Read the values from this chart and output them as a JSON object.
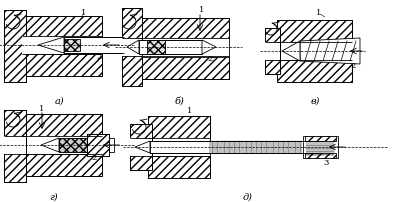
{
  "bg_color": "#ffffff",
  "line_color": "#000000",
  "hatch_color": "#000000",
  "labels": {
    "a": "а)",
    "b": "б)",
    "v": "в)",
    "g": "г)",
    "d": "д)"
  },
  "label_fontsize": 7,
  "ann_fontsize": 6,
  "figsize": [
    3.96,
    2.03
  ],
  "dpi": 100
}
